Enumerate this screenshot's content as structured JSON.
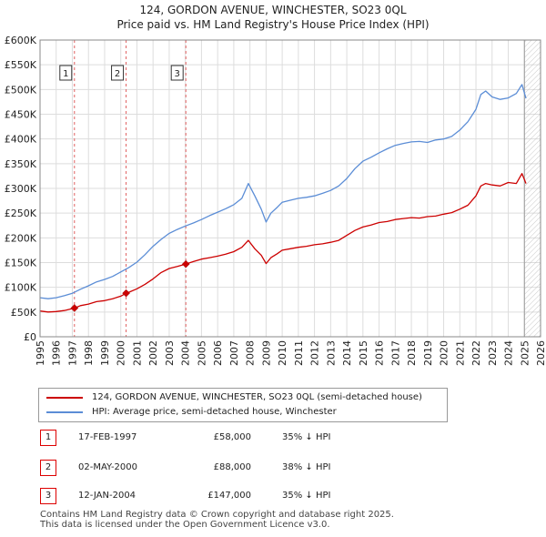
{
  "header": {
    "title": "124, GORDON AVENUE, WINCHESTER, SO23 0QL",
    "subtitle": "Price paid vs. HM Land Registry's House Price Index (HPI)"
  },
  "chart_data": {
    "type": "line",
    "title": "124, GORDON AVENUE, WINCHESTER, SO23 0QL",
    "subtitle": "Price paid vs. HM Land Registry's House Price Index (HPI)",
    "xlabel": "",
    "ylabel": "",
    "xlim": [
      1995,
      2026
    ],
    "ylim": [
      0,
      600000
    ],
    "grid": true,
    "x_ticks": [
      1995,
      1996,
      1997,
      1998,
      1999,
      2000,
      2001,
      2002,
      2003,
      2004,
      2005,
      2006,
      2007,
      2008,
      2009,
      2010,
      2011,
      2012,
      2013,
      2014,
      2015,
      2016,
      2017,
      2018,
      2019,
      2020,
      2021,
      2022,
      2023,
      2024,
      2025,
      2026
    ],
    "y_ticks": [
      {
        "value": 0,
        "label": "£0"
      },
      {
        "value": 50000,
        "label": "£50K"
      },
      {
        "value": 100000,
        "label": "£100K"
      },
      {
        "value": 150000,
        "label": "£150K"
      },
      {
        "value": 200000,
        "label": "£200K"
      },
      {
        "value": 250000,
        "label": "£250K"
      },
      {
        "value": 300000,
        "label": "£300K"
      },
      {
        "value": 350000,
        "label": "£350K"
      },
      {
        "value": 400000,
        "label": "£400K"
      },
      {
        "value": 450000,
        "label": "£450K"
      },
      {
        "value": 500000,
        "label": "£500K"
      },
      {
        "value": 550000,
        "label": "£550K"
      },
      {
        "value": 600000,
        "label": "£600K"
      }
    ],
    "future_shading_from": 2025.0,
    "series": [
      {
        "name": "124, GORDON AVENUE, WINCHESTER, SO23 0QL (semi-detached house)",
        "color": "#cc0000",
        "x": [
          1995.0,
          1995.5,
          1996.0,
          1996.5,
          1997.13,
          1997.5,
          1998.0,
          1998.5,
          1999.0,
          1999.5,
          2000.0,
          2000.33,
          2000.5,
          2001.0,
          2001.5,
          2002.0,
          2002.5,
          2003.0,
          2003.5,
          2004.03,
          2004.5,
          2005.0,
          2005.5,
          2006.0,
          2006.5,
          2007.0,
          2007.5,
          2007.9,
          2008.3,
          2008.7,
          2009.0,
          2009.3,
          2009.7,
          2010.0,
          2010.5,
          2011.0,
          2011.5,
          2012.0,
          2012.5,
          2013.0,
          2013.5,
          2014.0,
          2014.5,
          2015.0,
          2015.5,
          2016.0,
          2016.5,
          2017.0,
          2017.5,
          2018.0,
          2018.5,
          2019.0,
          2019.5,
          2020.0,
          2020.5,
          2021.0,
          2021.5,
          2022.0,
          2022.3,
          2022.6,
          2023.0,
          2023.5,
          2024.0,
          2024.5,
          2024.85,
          2025.1
        ],
        "values": [
          52000,
          50000,
          51000,
          53000,
          58000,
          63000,
          66000,
          71000,
          73000,
          77000,
          82000,
          88000,
          90000,
          97000,
          106000,
          117000,
          130000,
          138000,
          142000,
          147000,
          152000,
          157000,
          160000,
          163000,
          167000,
          172000,
          181000,
          195000,
          178000,
          165000,
          148000,
          160000,
          168000,
          175000,
          178000,
          181000,
          183000,
          186000,
          188000,
          191000,
          195000,
          205000,
          215000,
          222000,
          226000,
          231000,
          233000,
          237000,
          239000,
          241000,
          240000,
          243000,
          244000,
          248000,
          251000,
          258000,
          266000,
          285000,
          305000,
          310000,
          307000,
          305000,
          312000,
          310000,
          330000,
          310000
        ]
      },
      {
        "name": "HPI: Average price, semi-detached house, Winchester",
        "color": "#5b8dd6",
        "x": [
          1995.0,
          1995.5,
          1996.0,
          1996.5,
          1997.0,
          1997.5,
          1998.0,
          1998.5,
          1999.0,
          1999.5,
          2000.0,
          2000.5,
          2001.0,
          2001.5,
          2002.0,
          2002.5,
          2003.0,
          2003.5,
          2004.0,
          2004.5,
          2005.0,
          2005.5,
          2006.0,
          2006.5,
          2007.0,
          2007.5,
          2007.9,
          2008.3,
          2008.7,
          2009.0,
          2009.3,
          2009.7,
          2010.0,
          2010.5,
          2011.0,
          2011.5,
          2012.0,
          2012.5,
          2013.0,
          2013.5,
          2014.0,
          2014.5,
          2015.0,
          2015.5,
          2016.0,
          2016.5,
          2017.0,
          2017.5,
          2018.0,
          2018.5,
          2019.0,
          2019.5,
          2020.0,
          2020.5,
          2021.0,
          2021.5,
          2022.0,
          2022.3,
          2022.6,
          2023.0,
          2023.5,
          2024.0,
          2024.5,
          2024.85,
          2025.1
        ],
        "values": [
          79000,
          77000,
          79000,
          83000,
          88000,
          96000,
          103000,
          111000,
          116000,
          122000,
          131000,
          140000,
          151000,
          166000,
          183000,
          197000,
          209000,
          217000,
          224000,
          230000,
          237000,
          245000,
          252000,
          259000,
          267000,
          280000,
          310000,
          285000,
          258000,
          232000,
          250000,
          262000,
          272000,
          276000,
          280000,
          282000,
          285000,
          290000,
          296000,
          305000,
          320000,
          340000,
          355000,
          363000,
          372000,
          380000,
          387000,
          391000,
          394000,
          395000,
          393000,
          398000,
          400000,
          405000,
          418000,
          435000,
          460000,
          490000,
          497000,
          485000,
          480000,
          483000,
          492000,
          510000,
          482000
        ]
      }
    ],
    "sales": [
      {
        "marker": "1",
        "x": 1997.13,
        "value": 58000,
        "date": "17-FEB-1997",
        "price": "£58,000",
        "hpi": "35% ↓ HPI"
      },
      {
        "marker": "2",
        "x": 2000.33,
        "value": 88000,
        "date": "02-MAY-2000",
        "price": "£88,000",
        "hpi": "38% ↓ HPI"
      },
      {
        "marker": "3",
        "x": 2004.03,
        "value": 147000,
        "date": "12-JAN-2004",
        "price": "£147,000",
        "hpi": "35% ↓ HPI"
      }
    ]
  },
  "legend": {
    "property_label": "124, GORDON AVENUE, WINCHESTER, SO23 0QL (semi-detached house)",
    "hpi_label": "HPI: Average price, semi-detached house, Winchester",
    "property_color": "#cc0000",
    "hpi_color": "#5b8dd6"
  },
  "sales_table": [
    {
      "marker": "1",
      "date": "17-FEB-1997",
      "price": "£58,000",
      "hpi": "35% ↓ HPI"
    },
    {
      "marker": "2",
      "date": "02-MAY-2000",
      "price": "£88,000",
      "hpi": "38% ↓ HPI"
    },
    {
      "marker": "3",
      "date": "12-JAN-2004",
      "price": "£147,000",
      "hpi": "35% ↓ HPI"
    }
  ],
  "footer": {
    "line1": "Contains HM Land Registry data © Crown copyright and database right 2025.",
    "line2": "This data is licensed under the Open Government Licence v3.0."
  }
}
